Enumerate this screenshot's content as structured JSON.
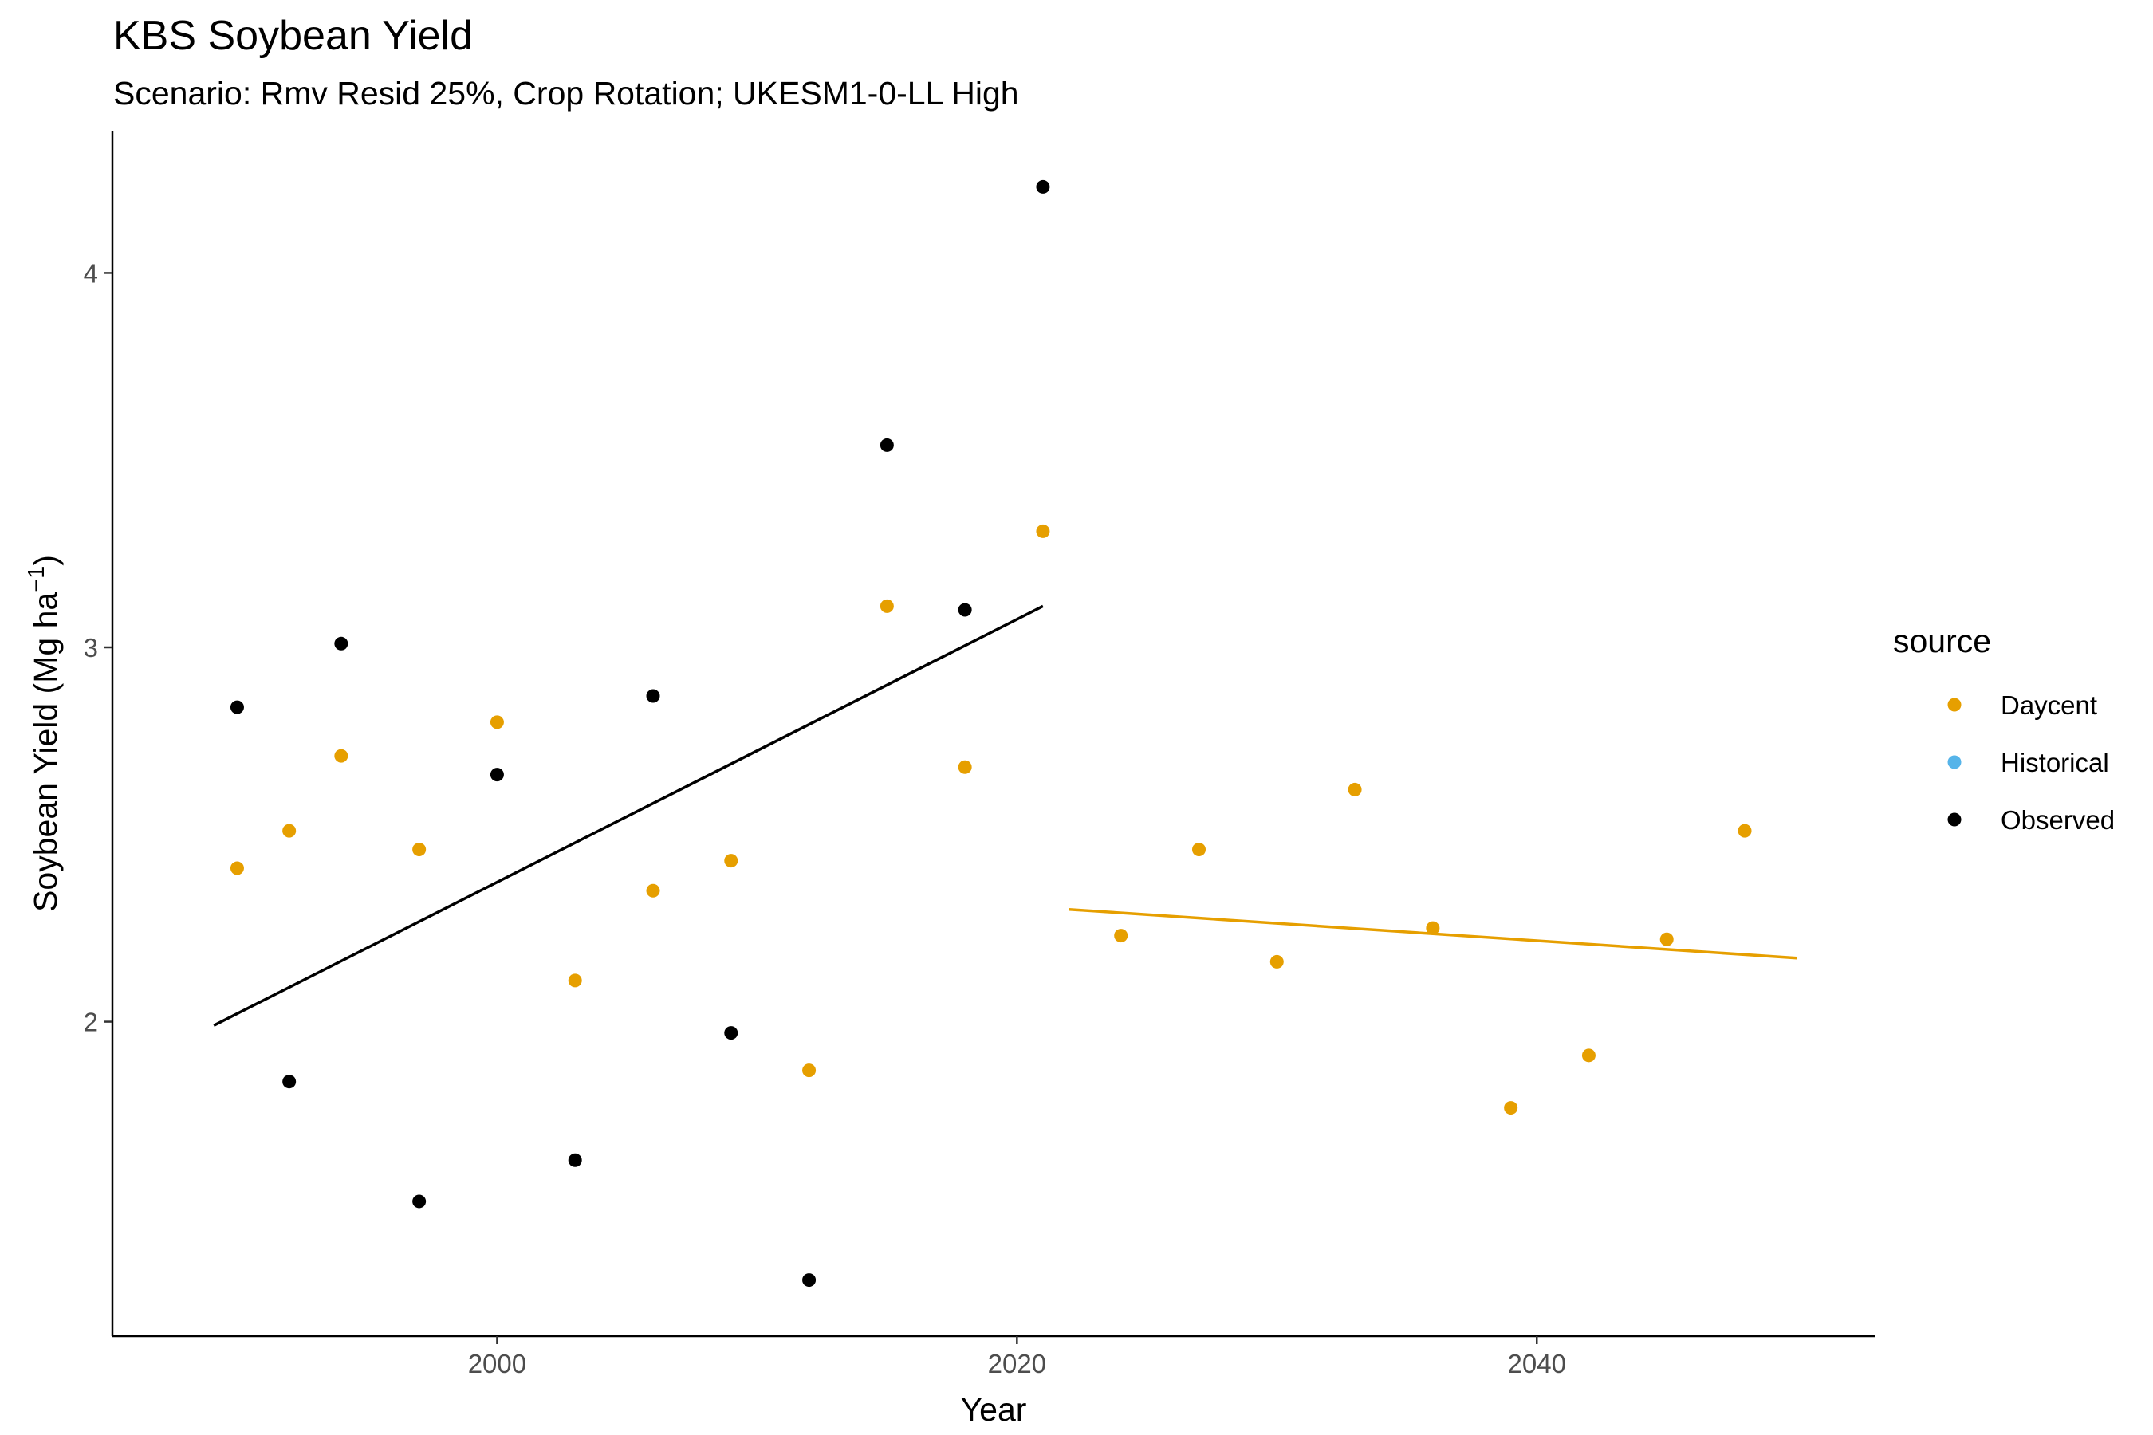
{
  "chart_data": {
    "type": "scatter",
    "title": "KBS Soybean Yield",
    "subtitle": "Scenario: Rmv Resid 25%, Crop Rotation; UKESM1-0-LL High",
    "xlabel": "Year",
    "ylabel": "Soybean Yield (Mg ha",
    "ylabel_sup": "−1",
    "ylabel_close": ")",
    "xlim": [
      1985.2,
      2053.0
    ],
    "ylim": [
      1.16,
      4.38
    ],
    "x_ticks": [
      2000,
      2020,
      2040
    ],
    "x_tick_labels": [
      "2000",
      "2020",
      "2040"
    ],
    "y_ticks": [
      2,
      3,
      4
    ],
    "y_tick_labels": [
      "2",
      "3",
      "4"
    ],
    "grid": false,
    "legend": {
      "title": "source",
      "placement": "right",
      "entries": [
        "Daycent",
        "Historical",
        "Observed"
      ]
    },
    "series": [
      {
        "name": "Daycent",
        "color": "#E69F00",
        "points": [
          [
            1990,
            2.41
          ],
          [
            1992,
            2.51
          ],
          [
            1994,
            2.71
          ],
          [
            1997,
            2.46
          ],
          [
            2000,
            2.8
          ],
          [
            2003,
            2.11
          ],
          [
            2006,
            2.35
          ],
          [
            2009,
            2.43
          ],
          [
            2012,
            1.87
          ],
          [
            2015,
            3.11
          ],
          [
            2018,
            2.68
          ],
          [
            2021,
            3.31
          ],
          [
            2024,
            2.23
          ],
          [
            2027,
            2.46
          ],
          [
            2030,
            2.16
          ],
          [
            2033,
            2.62
          ],
          [
            2036,
            2.25
          ],
          [
            2039,
            1.77
          ],
          [
            2042,
            1.91
          ],
          [
            2045,
            2.22
          ],
          [
            2048,
            2.51
          ]
        ]
      },
      {
        "name": "Historical",
        "color": "#56B4E9",
        "points": []
      },
      {
        "name": "Observed",
        "color": "#000000",
        "points": [
          [
            1990,
            2.84
          ],
          [
            1992,
            1.84
          ],
          [
            1994,
            3.01
          ],
          [
            1997,
            1.52
          ],
          [
            2000,
            2.66
          ],
          [
            2003,
            1.63
          ],
          [
            2006,
            2.87
          ],
          [
            2009,
            1.97
          ],
          [
            2012,
            1.31
          ],
          [
            2015,
            3.54
          ],
          [
            2018,
            3.1
          ],
          [
            2021,
            4.23
          ]
        ]
      }
    ],
    "trend_lines": [
      {
        "name": "Observed",
        "color": "#000000",
        "from": [
          1989.1,
          1.99
        ],
        "to": [
          2021,
          3.11
        ]
      },
      {
        "name": "Daycent",
        "color": "#E69F00",
        "from": [
          2022,
          2.3
        ],
        "to": [
          2050,
          2.17
        ]
      }
    ]
  }
}
